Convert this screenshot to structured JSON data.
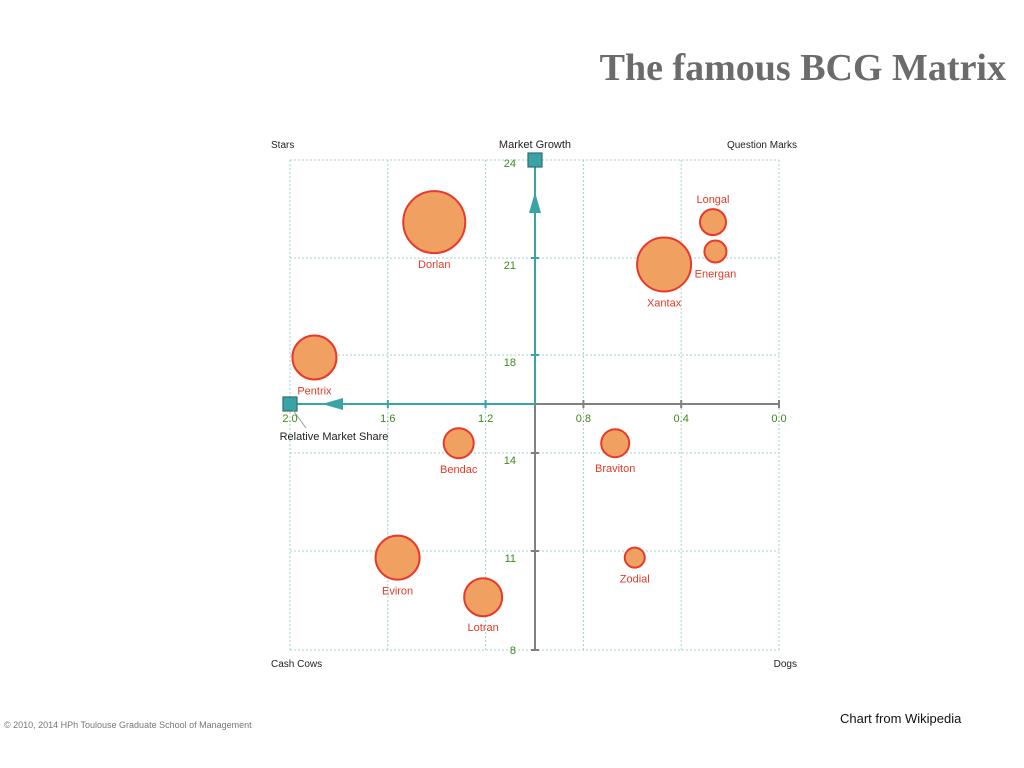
{
  "slide": {
    "title": "The famous BCG Matrix",
    "footer_left": "© 2010, 2014 HPh Toulouse Graduate School of Management",
    "footer_right": "Chart from Wikipedia"
  },
  "colors": {
    "title": "#6b6b6b",
    "axis": "#3aa3a6",
    "axis_gray": "#808080",
    "grid": "#9fd3d0",
    "bubble_fill": "#f0a060",
    "bubble_stroke": "#e8392a",
    "label_red": "#e23a26",
    "tick_green": "#3d8a1a"
  },
  "chart_data": {
    "type": "scatter",
    "title": "",
    "xlabel": "Relative Market Share",
    "ylabel": "Market Growth",
    "x_reversed": true,
    "xlim": [
      0.0,
      2.0
    ],
    "ylim": [
      8,
      24
    ],
    "grid": true,
    "x_ticks": [
      "2.0",
      "1.6",
      "1.2",
      "0.8",
      "0.4",
      "0.0"
    ],
    "y_ticks": [
      "24",
      "21",
      "18",
      "14",
      "11",
      "8"
    ],
    "quadrants": {
      "top_left": "Stars",
      "top_right": "Question Marks",
      "bottom_left": "Cash Cows",
      "bottom_right": "Dogs"
    },
    "series": [
      {
        "points": [
          {
            "name": "Dorlan",
            "x": 1.41,
            "y": 22.1,
            "size": 31
          },
          {
            "name": "Xantax",
            "x": 0.47,
            "y": 20.8,
            "size": 27
          },
          {
            "name": "Longal",
            "x": 0.27,
            "y": 22.1,
            "size": 13
          },
          {
            "name": "Energan",
            "x": 0.26,
            "y": 21.2,
            "size": 11
          },
          {
            "name": "Pentrix",
            "x": 1.9,
            "y": 17.9,
            "size": 22
          },
          {
            "name": "Bendac",
            "x": 1.31,
            "y": 14.4,
            "size": 15
          },
          {
            "name": "Braviton",
            "x": 0.67,
            "y": 14.4,
            "size": 14
          },
          {
            "name": "Eviron",
            "x": 1.56,
            "y": 10.8,
            "size": 22
          },
          {
            "name": "Lotran",
            "x": 1.21,
            "y": 9.6,
            "size": 19
          },
          {
            "name": "Zodial",
            "x": 0.59,
            "y": 10.8,
            "size": 10
          }
        ]
      }
    ]
  }
}
